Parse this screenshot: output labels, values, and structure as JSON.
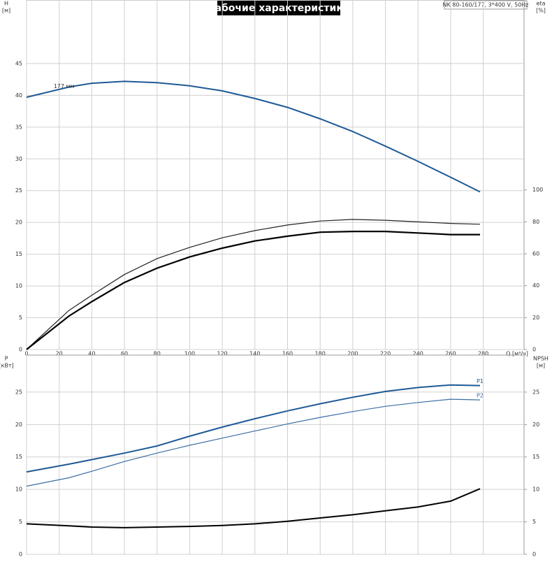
{
  "chart_data": [
    {
      "type": "line",
      "title": "Рабочие характеристики",
      "subtitle": "NK 80-160/177, 3*400 V, 50Hz",
      "ylabel": "H",
      "ylabel_unit": "[м]",
      "y2label": "eta",
      "y2label_unit": "[%]",
      "xlabel": "Q [м³/ч]",
      "x": [
        0,
        26,
        40,
        60,
        80,
        100,
        120,
        140,
        160,
        180,
        200,
        220,
        240,
        260,
        278
      ],
      "xlim": [
        0,
        305
      ],
      "xticks": [
        0,
        20,
        40,
        60,
        80,
        100,
        120,
        140,
        160,
        180,
        200,
        220,
        240,
        260,
        280
      ],
      "ylim": [
        0,
        55
      ],
      "yticks": [
        0,
        5,
        10,
        15,
        20,
        25,
        30,
        35,
        40,
        45
      ],
      "y2lim": [
        0,
        219
      ],
      "y2ticks": [
        0,
        20,
        40,
        60,
        80,
        100
      ],
      "grid": true,
      "series": [
        {
          "name": "177 мм",
          "color": "#1f5a96",
          "line_width": 2,
          "values": [
            39.7,
            41.3,
            41.9,
            42.2,
            42.0,
            41.5,
            40.7,
            39.5,
            38.1,
            36.3,
            34.3,
            32.0,
            29.6,
            27.1,
            24.8
          ]
        },
        {
          "color": "#222222",
          "line_width": 1.2,
          "axis": "y2",
          "values": [
            0,
            24.5,
            34,
            47,
            57,
            64,
            70,
            74.5,
            78,
            80.5,
            81.5,
            81,
            80,
            79,
            78.5
          ]
        },
        {
          "color": "#000000",
          "line_width": 2.2,
          "axis": "y2",
          "values": [
            0,
            21,
            30,
            42,
            51,
            58,
            63.5,
            68,
            71,
            73.5,
            74,
            74,
            73,
            72,
            72
          ]
        }
      ]
    },
    {
      "type": "line",
      "ylabel": "P",
      "ylabel_unit": "[кВт]",
      "y2label": "NPSH",
      "y2label_unit": "[м]",
      "x": [
        0,
        26,
        40,
        60,
        80,
        100,
        120,
        140,
        160,
        180,
        200,
        220,
        240,
        260,
        278
      ],
      "xlim": [
        0,
        305
      ],
      "ylim": [
        0,
        30.7
      ],
      "yticks": [
        0,
        5,
        10,
        15,
        20,
        25
      ],
      "y2lim": [
        0,
        30.7
      ],
      "y2ticks": [
        0,
        5,
        10,
        15,
        20,
        25
      ],
      "grid": true,
      "series": [
        {
          "name": "P1",
          "color": "#1f5a96",
          "line_width": 2,
          "values": [
            12.7,
            13.9,
            14.6,
            15.6,
            16.7,
            18.2,
            19.6,
            20.9,
            22.1,
            23.2,
            24.2,
            25.1,
            25.7,
            26.1,
            26.0
          ]
        },
        {
          "name": "P2",
          "color": "#3a6ea5",
          "line_width": 1.2,
          "values": [
            10.5,
            11.8,
            12.8,
            14.3,
            15.6,
            16.8,
            17.9,
            19.0,
            20.1,
            21.1,
            22.0,
            22.8,
            23.4,
            23.9,
            23.8
          ]
        },
        {
          "color": "#000000",
          "line_width": 2,
          "axis": "y2",
          "values": [
            4.7,
            4.4,
            4.2,
            4.1,
            4.2,
            4.3,
            4.45,
            4.7,
            5.1,
            5.6,
            6.1,
            6.7,
            7.3,
            8.2,
            10.1
          ]
        }
      ]
    }
  ]
}
